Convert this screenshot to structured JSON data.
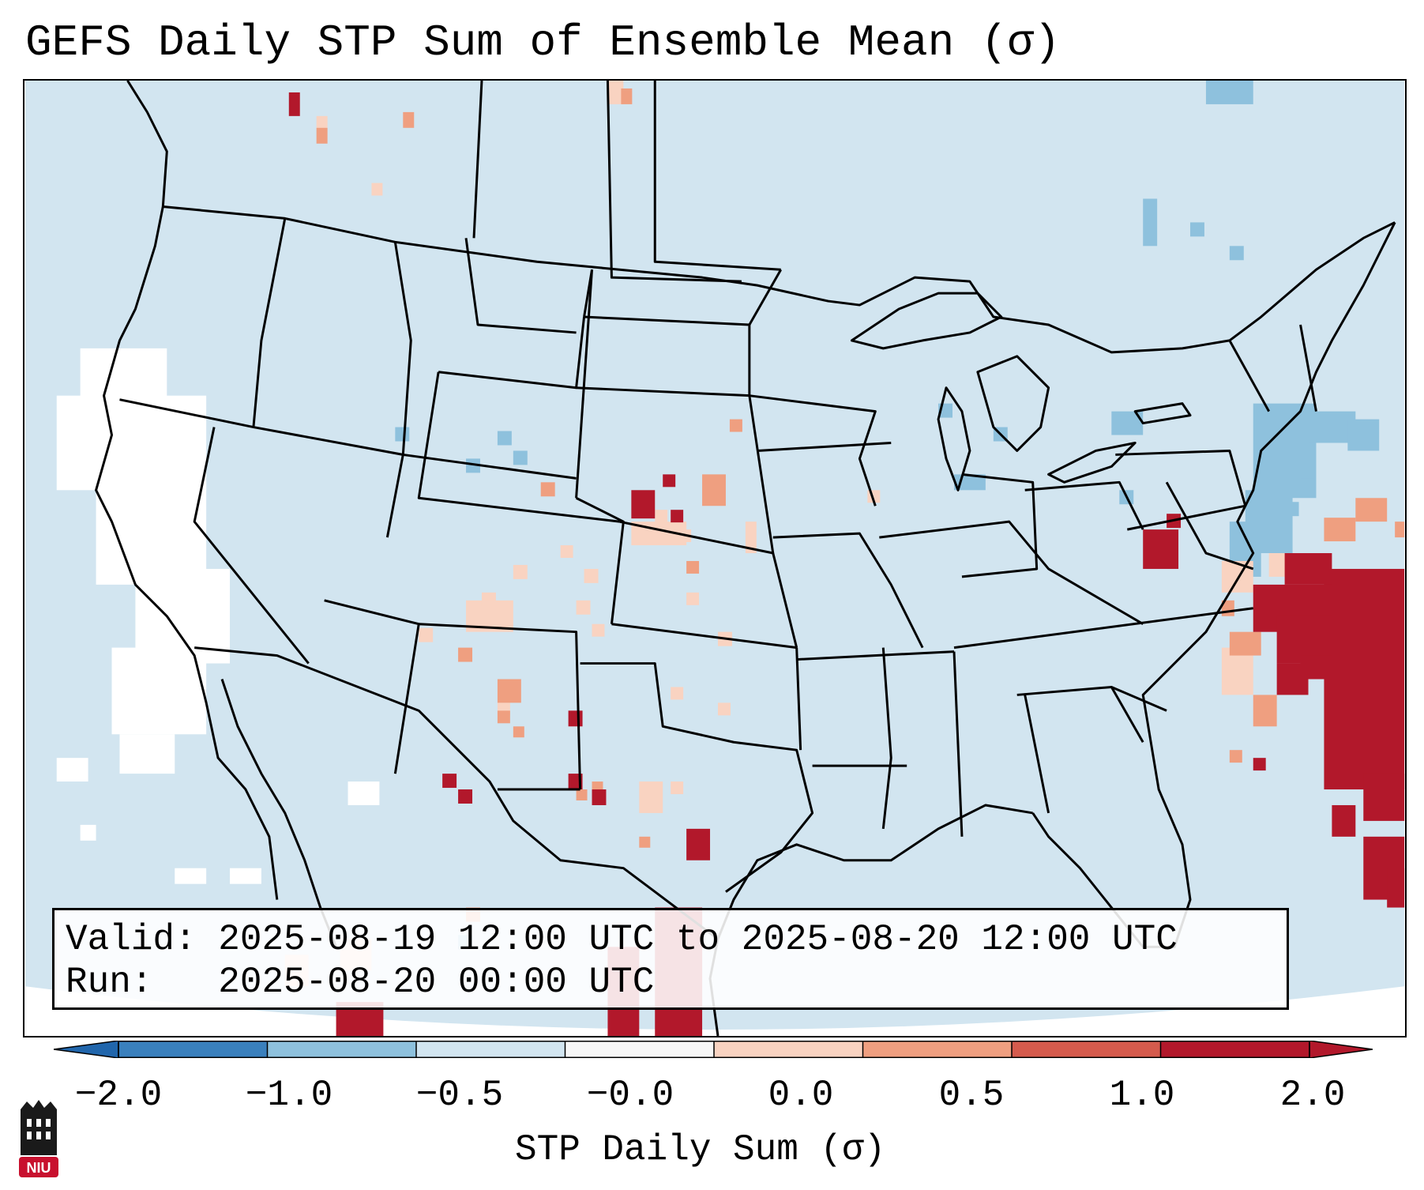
{
  "title": "GEFS Daily STP Sum of Ensemble Mean (σ)",
  "info": {
    "valid_line": "Valid: 2025-08-19 12:00 UTC to 2025-08-20 12:00 UTC",
    "run_line": "Run:   2025-08-20 00:00 UTC"
  },
  "colorbar": {
    "label": "STP Daily Sum (σ)",
    "ticks": [
      "−2.0",
      "−1.0",
      "−0.5",
      "−0.0",
      "0.0",
      "0.5",
      "1.0",
      "2.0"
    ],
    "colors": [
      "#3a80bd",
      "#8ec1dd",
      "#d2e5f0",
      "#f7f7f7",
      "#f9d3c1",
      "#ef9f80",
      "#d55b4d",
      "#b2182b"
    ],
    "extend_low_color": "#2166ac",
    "extend_high_color": "#b2182b"
  },
  "map": {
    "background_color": "#d2e5f0",
    "outside_color": "#ffffff"
  },
  "logo": {
    "text": "NIU",
    "color": "#c8102e"
  }
}
